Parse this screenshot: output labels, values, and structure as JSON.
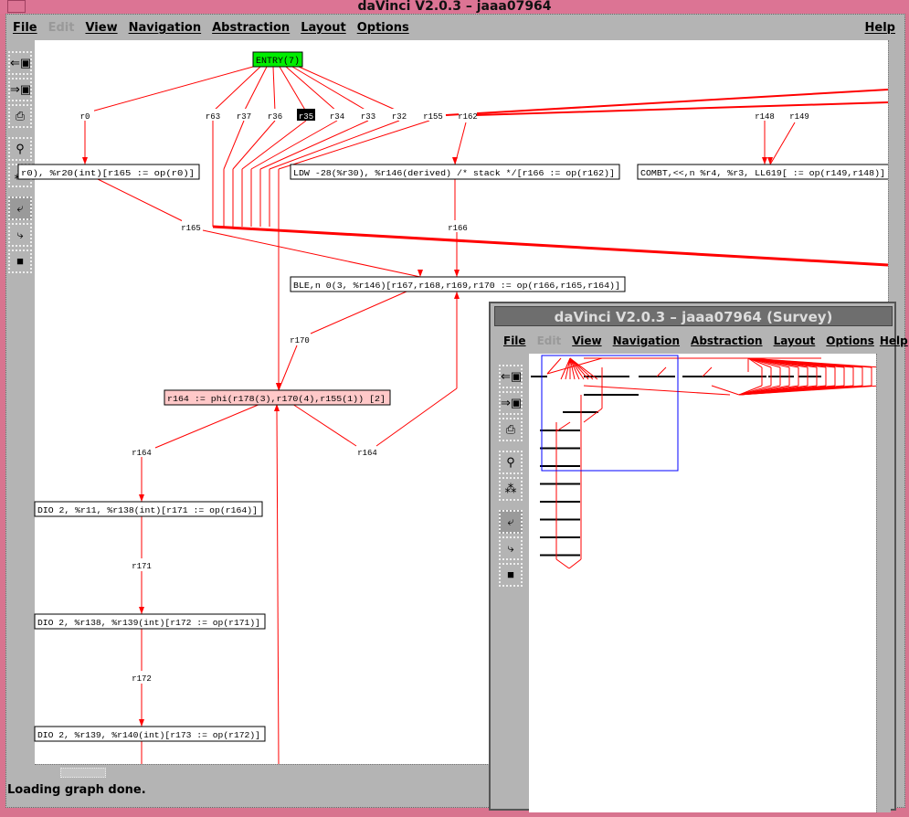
{
  "window": {
    "title": "daVinci V2.0.3 – jaaa07964"
  },
  "menu": {
    "file": "File",
    "edit": "Edit",
    "view": "View",
    "navigation": "Navigation",
    "abstraction": "Abstraction",
    "layout": "Layout",
    "options": "Options",
    "help": "Help"
  },
  "toolbar": {
    "icons": [
      "load-graph-icon",
      "save-graph-icon",
      "print-icon",
      "zoom-icon",
      "layout-icon",
      "follow-edge-icon",
      "follow-edge-alt-icon",
      "stop-icon"
    ]
  },
  "status": "Loading graph done.",
  "graph": {
    "entry": "ENTRY(7)",
    "edge_labels": {
      "r0": "r0",
      "r63": "r63",
      "r37": "r37",
      "r36": "r36",
      "r35": "r35",
      "r34": "r34",
      "r33": "r33",
      "r32": "r32",
      "r155": "r155",
      "r162": "r162",
      "r148": "r148",
      "r149": "r149",
      "r165": "r165",
      "r166": "r166",
      "r170": "r170",
      "r164a": "r164",
      "r164b": "r164",
      "r171": "r171",
      "r172": "r172"
    },
    "nodes": {
      "n165": "r0), %r20(int)[r165 := op(r0)]",
      "n166": "LDW -28(%r30), %r146(derived) /* stack */[r166 := op(r162)]",
      "ncomb": "COMBT,<<,n %r4, %r3, LL619[ := op(r149,r148)]",
      "nble": "BLE,n 0(3, %r146)[r167,r168,r169,r170 := op(r166,r165,r164)]",
      "nphi": "r164 := phi(r178(3),r170(4),r155(1)) [2]",
      "n171": "DIO 2, %r11, %r138(int)[r171 := op(r164)]",
      "n172": "DIO 2, %r138, %r139(int)[r172 := op(r171)]",
      "n173": "DIO 2, %r139, %r140(int)[r173 := op(r172)]"
    },
    "colors": {
      "edge": "#ff0000",
      "entry": "#00ee00",
      "phi": "#ffc8c8",
      "selected": "#000000"
    }
  },
  "survey": {
    "title": "daVinci V2.0.3 – jaaa07964 (Survey)",
    "viewport_color": "#0000ff"
  }
}
